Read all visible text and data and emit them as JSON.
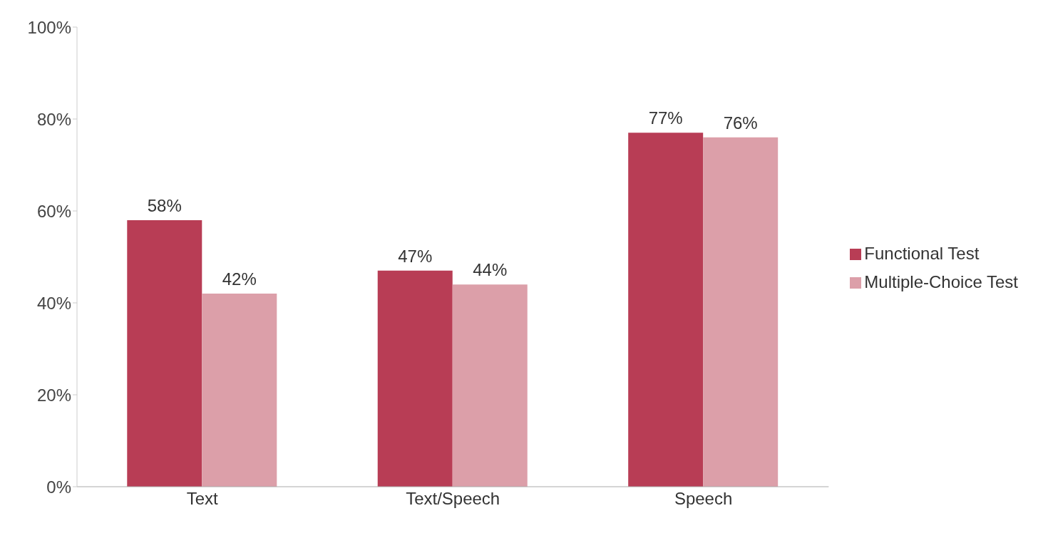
{
  "chart_data": {
    "type": "bar",
    "categories": [
      "Text",
      "Text/Speech",
      "Speech"
    ],
    "series": [
      {
        "name": "Functional Test",
        "color": "#b83d55",
        "values": [
          58,
          47,
          77
        ],
        "value_labels": [
          "58%",
          "47%",
          "77%"
        ]
      },
      {
        "name": "Multiple-Choice Test",
        "color": "#dc9fa9",
        "values": [
          42,
          44,
          76
        ],
        "value_labels": [
          "42%",
          "44%",
          "76%"
        ]
      }
    ],
    "ylim": [
      0,
      100
    ],
    "yticks": [
      {
        "value": 0,
        "label": "0%"
      },
      {
        "value": 20,
        "label": "20%"
      },
      {
        "value": 40,
        "label": "40%"
      },
      {
        "value": 60,
        "label": "60%"
      },
      {
        "value": 80,
        "label": "80%"
      },
      {
        "value": 100,
        "label": "100%"
      }
    ],
    "grid": false,
    "legend": "right"
  }
}
